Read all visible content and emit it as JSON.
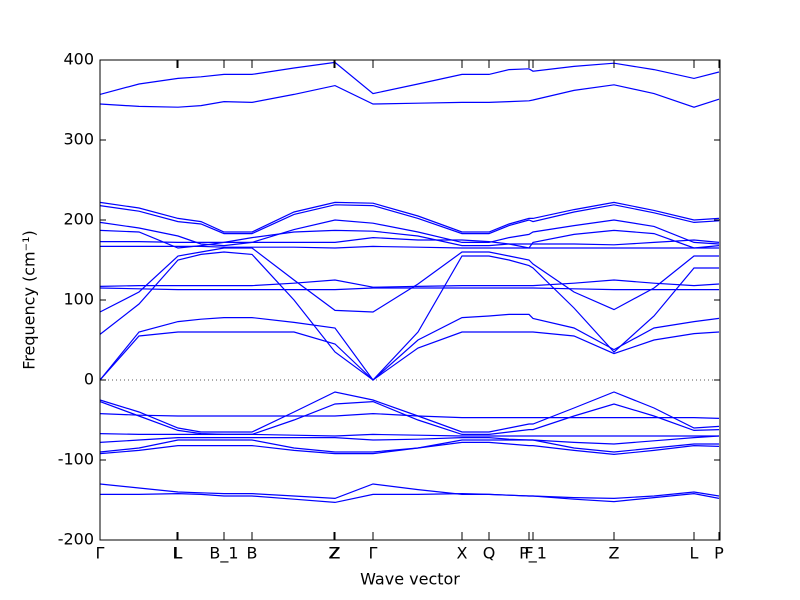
{
  "chart_data": {
    "type": "line",
    "xlabel": "Wave vector",
    "ylabel": "Frequency (cm⁻¹)",
    "color": "#0000ff",
    "hline": 0,
    "xlim": [
      0,
      620
    ],
    "ylim": [
      -200,
      400
    ],
    "yticks": [
      -200,
      -100,
      0,
      100,
      200,
      300,
      400
    ],
    "xticks": [
      {
        "value": 0,
        "label": "Γ"
      },
      {
        "value": 77,
        "label": "L"
      },
      {
        "value": 78,
        "label": "L"
      },
      {
        "value": 124,
        "label": "B_1"
      },
      {
        "value": 152,
        "label": "B"
      },
      {
        "value": 234,
        "label": "Z"
      },
      {
        "value": 235,
        "label": "Z"
      },
      {
        "value": 273,
        "label": "Γ"
      },
      {
        "value": 362,
        "label": "X"
      },
      {
        "value": 389,
        "label": "Q"
      },
      {
        "value": 429,
        "label": "F"
      },
      {
        "value": 433,
        "label": "P_1"
      },
      {
        "value": 514,
        "label": "Z"
      },
      {
        "value": 594,
        "label": "L"
      },
      {
        "value": 619,
        "label": "P"
      }
    ],
    "x": [
      0,
      39,
      78,
      101,
      124,
      152,
      194,
      235,
      273,
      318,
      362,
      389,
      409,
      429,
      433,
      474,
      514,
      554,
      594,
      619
    ],
    "series": [
      {
        "values": [
          357,
          370,
          377,
          379,
          382,
          382,
          390,
          397,
          358,
          370,
          382,
          382,
          388,
          389,
          386,
          392,
          396,
          388,
          377,
          385
        ]
      },
      {
        "values": [
          345,
          342,
          341,
          343,
          348,
          347,
          357,
          368,
          345,
          346,
          347,
          347,
          348,
          349,
          350,
          362,
          369,
          358,
          341,
          351
        ]
      },
      {
        "values": [
          222,
          215,
          202,
          198,
          185,
          185,
          210,
          222,
          221,
          205,
          185,
          185,
          195,
          202,
          202,
          213,
          222,
          212,
          200,
          202
        ]
      },
      {
        "values": [
          218,
          211,
          198,
          195,
          183,
          183,
          207,
          219,
          218,
          202,
          183,
          183,
          193,
          200,
          198,
          210,
          219,
          209,
          197,
          199
        ]
      },
      {
        "values": [
          197,
          190,
          180,
          170,
          168,
          172,
          188,
          200,
          196,
          185,
          172,
          172,
          178,
          182,
          185,
          193,
          200,
          192,
          172,
          170
        ]
      },
      {
        "values": [
          187,
          185,
          165,
          168,
          172,
          178,
          185,
          187,
          186,
          180,
          168,
          168,
          170,
          165,
          172,
          182,
          187,
          183,
          165,
          168
        ]
      },
      {
        "values": [
          173,
          173,
          172,
          172,
          172,
          172,
          172,
          172,
          178,
          175,
          175,
          173,
          170,
          170,
          170,
          170,
          169,
          172,
          175,
          172
        ]
      },
      {
        "values": [
          167,
          167,
          167,
          167,
          166,
          166,
          166,
          165,
          167,
          166,
          165,
          165,
          165,
          165,
          165,
          165,
          165,
          165,
          165,
          165
        ]
      },
      {
        "values": [
          117,
          118,
          118,
          118,
          118,
          118,
          121,
          125,
          116,
          117,
          118,
          118,
          118,
          118,
          118,
          121,
          125,
          121,
          118,
          120
        ]
      },
      {
        "values": [
          115,
          114,
          113,
          113,
          113,
          113,
          113,
          113,
          115,
          115,
          115,
          115,
          115,
          115,
          115,
          114,
          113,
          113,
          113,
          113
        ]
      },
      {
        "values": [
          85,
          110,
          155,
          160,
          165,
          165,
          125,
          87,
          85,
          120,
          160,
          160,
          155,
          150,
          145,
          110,
          88,
          115,
          155,
          155
        ]
      },
      {
        "values": [
          57,
          95,
          150,
          157,
          160,
          157,
          100,
          35,
          0,
          60,
          155,
          155,
          150,
          143,
          140,
          90,
          35,
          80,
          140,
          140
        ]
      },
      {
        "values": [
          0,
          55,
          60,
          60,
          60,
          60,
          60,
          45,
          0,
          40,
          60,
          60,
          60,
          60,
          60,
          55,
          33,
          50,
          58,
          60
        ]
      },
      {
        "values": [
          0,
          60,
          73,
          76,
          78,
          78,
          72,
          65,
          0,
          50,
          78,
          80,
          82,
          82,
          77,
          65,
          38,
          65,
          73,
          77
        ]
      },
      {
        "values": [
          -25,
          -40,
          -60,
          -65,
          -65,
          -65,
          -40,
          -15,
          -25,
          -45,
          -65,
          -65,
          -60,
          -55,
          -55,
          -35,
          -15,
          -35,
          -60,
          -58
        ]
      },
      {
        "values": [
          -27,
          -45,
          -63,
          -67,
          -68,
          -68,
          -50,
          -30,
          -27,
          -50,
          -68,
          -68,
          -65,
          -62,
          -62,
          -45,
          -30,
          -45,
          -63,
          -62
        ]
      },
      {
        "values": [
          -42,
          -44,
          -45,
          -45,
          -45,
          -45,
          -45,
          -45,
          -42,
          -45,
          -47,
          -47,
          -47,
          -47,
          -47,
          -47,
          -47,
          -47,
          -47,
          -48
        ]
      },
      {
        "values": [
          -67,
          -68,
          -68,
          -68,
          -68,
          -68,
          -69,
          -70,
          -68,
          -69,
          -70,
          -70,
          -70,
          -70,
          -70,
          -70,
          -70,
          -70,
          -70,
          -70
        ]
      },
      {
        "values": [
          -78,
          -75,
          -72,
          -72,
          -72,
          -72,
          -72,
          -72,
          -75,
          -74,
          -72,
          -72,
          -74,
          -75,
          -75,
          -78,
          -80,
          -76,
          -72,
          -70
        ]
      },
      {
        "values": [
          -90,
          -85,
          -75,
          -75,
          -75,
          -75,
          -85,
          -90,
          -90,
          -85,
          -75,
          -75,
          -75,
          -75,
          -75,
          -85,
          -90,
          -85,
          -80,
          -80
        ]
      },
      {
        "values": [
          -92,
          -88,
          -82,
          -82,
          -82,
          -82,
          -88,
          -92,
          -92,
          -85,
          -78,
          -78,
          -80,
          -82,
          -82,
          -88,
          -93,
          -88,
          -82,
          -83
        ]
      },
      {
        "values": [
          -130,
          -135,
          -140,
          -141,
          -142,
          -142,
          -145,
          -148,
          -130,
          -137,
          -143,
          -143,
          -144,
          -145,
          -145,
          -147,
          -148,
          -145,
          -140,
          -145
        ]
      },
      {
        "values": [
          -143,
          -143,
          -142,
          -143,
          -145,
          -145,
          -149,
          -153,
          -143,
          -143,
          -142,
          -143,
          -144,
          -145,
          -145,
          -149,
          -152,
          -147,
          -142,
          -148
        ]
      }
    ]
  }
}
